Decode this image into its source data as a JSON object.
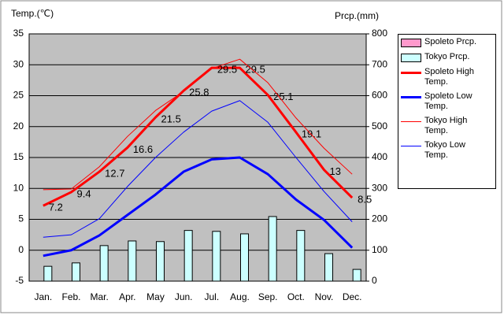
{
  "chart_data": {
    "type": "combo",
    "ylabel": "Temp.(℃)",
    "y2label": "Prcp.(mm)",
    "categories": [
      "Jan.",
      "Feb.",
      "Mar.",
      "Apr.",
      "May",
      "Jun.",
      "Jul.",
      "Aug.",
      "Sep.",
      "Oct.",
      "Nov.",
      "Dec."
    ],
    "ylim": [
      -5,
      35
    ],
    "yticks": [
      -5,
      0,
      5,
      10,
      15,
      20,
      25,
      30,
      35
    ],
    "y2lim": [
      0,
      800
    ],
    "y2ticks": [
      0,
      100,
      200,
      300,
      400,
      500,
      600,
      700,
      800
    ],
    "grid": true,
    "legend": "right",
    "series": [
      {
        "name": "Spoleto Prcp.",
        "type": "bar",
        "axis": "y2",
        "color": "#ff99cc",
        "values": [
          null,
          null,
          null,
          null,
          null,
          null,
          null,
          null,
          null,
          null,
          null,
          null
        ]
      },
      {
        "name": "Tokyo Prcp.",
        "type": "bar",
        "axis": "y2",
        "color": "#ccffff",
        "values": [
          48,
          59,
          115,
          130,
          128,
          164,
          161,
          153,
          209,
          164,
          89,
          38
        ]
      },
      {
        "name": "Spoleto High Temp.",
        "type": "line",
        "color": "#ff0000",
        "line_width": 3,
        "data_labels": true,
        "values": [
          7.2,
          9.4,
          12.7,
          16.6,
          21.5,
          25.8,
          29.5,
          29.5,
          25.1,
          19.1,
          13,
          8.5
        ]
      },
      {
        "name": "Spoleto Low Temp.",
        "type": "line",
        "color": "#0000ff",
        "line_width": 3,
        "values": [
          -0.9,
          0.0,
          2.4,
          5.7,
          9.0,
          12.7,
          14.7,
          15.0,
          12.3,
          8.2,
          4.9,
          0.4
        ]
      },
      {
        "name": "Tokyo High Temp.",
        "type": "line",
        "color": "#ff0000",
        "line_width": 1,
        "values": [
          9.8,
          9.9,
          13.5,
          18.4,
          22.6,
          25.7,
          29.4,
          30.9,
          27.1,
          21.4,
          16.5,
          12.3
        ]
      },
      {
        "name": "Tokyo Low Temp.",
        "type": "line",
        "color": "#0000ff",
        "line_width": 1,
        "values": [
          2.1,
          2.5,
          5.1,
          10.3,
          15.0,
          19.1,
          22.5,
          24.2,
          20.7,
          15.0,
          9.5,
          4.6
        ]
      }
    ]
  }
}
